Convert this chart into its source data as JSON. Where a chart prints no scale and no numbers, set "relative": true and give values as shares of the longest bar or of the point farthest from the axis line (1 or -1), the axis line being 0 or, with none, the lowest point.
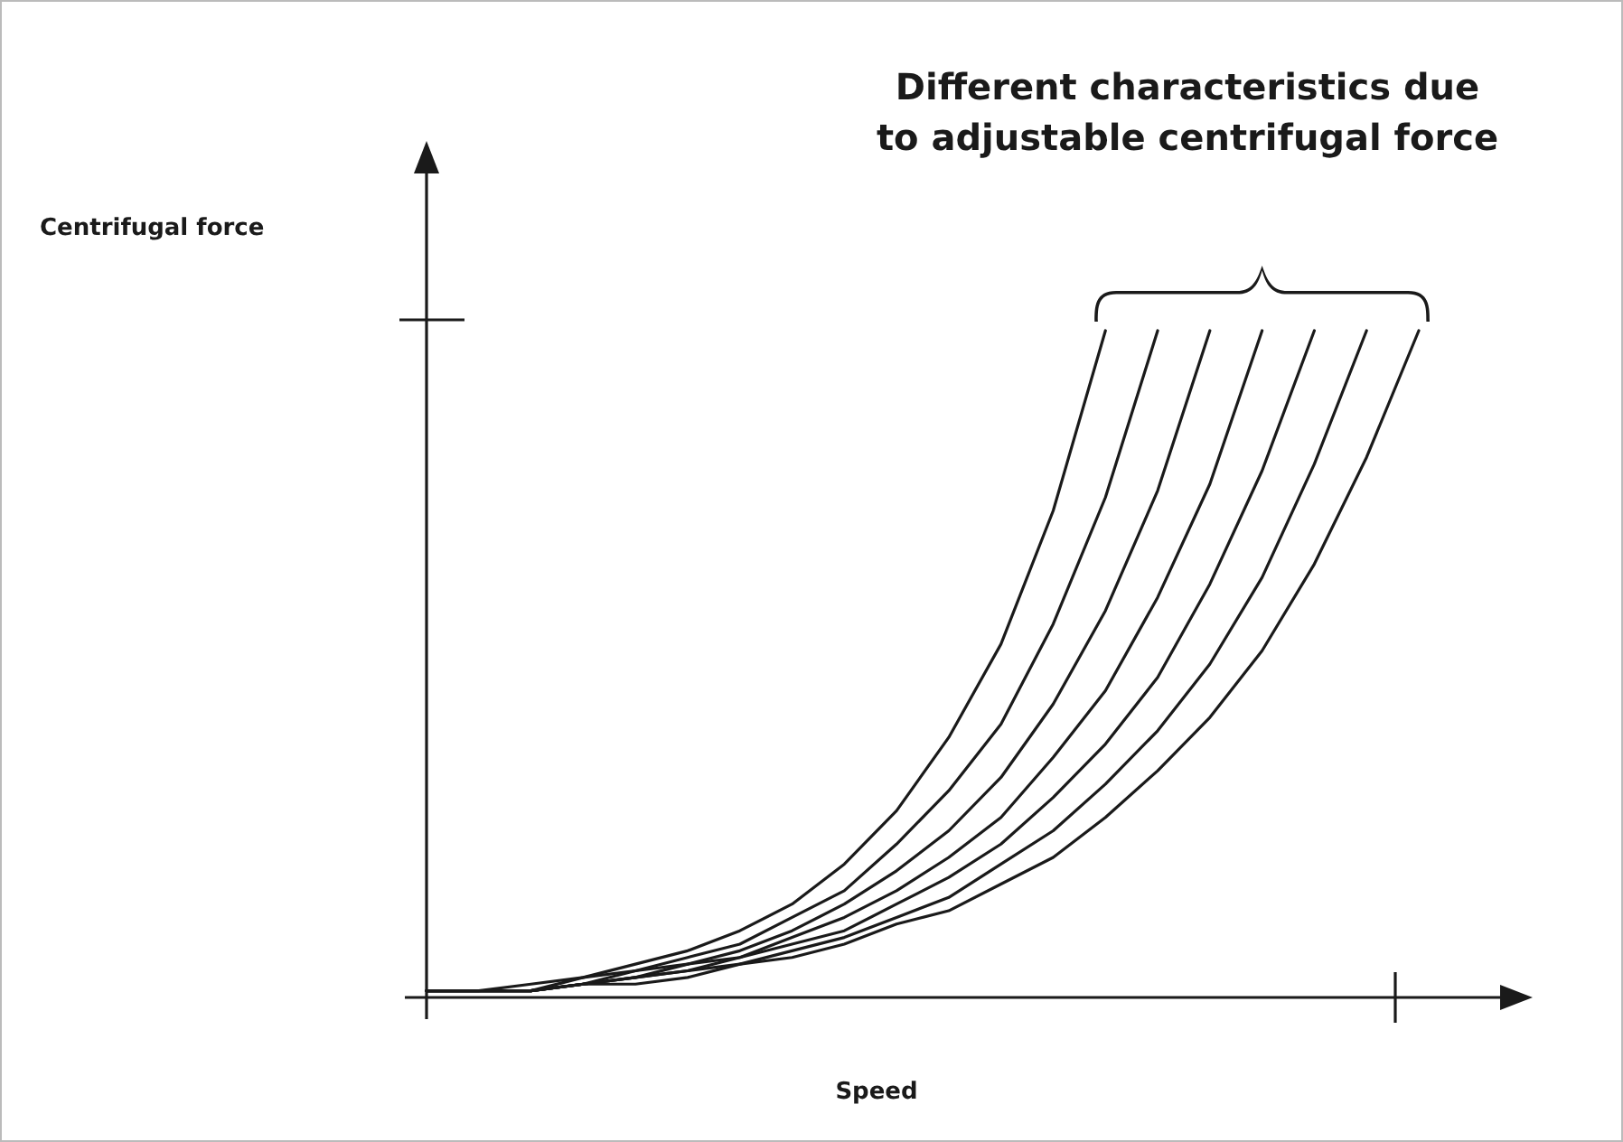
{
  "chart_data": {
    "type": "line",
    "title": "Different characteristics due\nto adjustable centrifugal force",
    "xlabel": "Speed",
    "annotations": [
      "Centrifugal force"
    ],
    "relative": true,
    "categories": [
      null,
      null,
      null,
      null,
      null,
      null,
      null,
      null,
      null,
      null,
      null,
      null,
      null,
      null,
      null,
      null,
      null,
      null,
      null,
      null
    ],
    "series": [
      {
        "color": "#1a1a1a",
        "values": [
          0.01,
          0.01,
          0.02,
          0.03,
          0.05,
          0.07,
          0.1,
          0.14,
          0.2,
          0.28,
          0.39,
          0.53,
          0.73,
          1,
          null,
          null,
          null,
          null,
          null,
          null
        ]
      },
      {
        "color": "#1a1a1a",
        "values": [
          0.01,
          0.01,
          0.01,
          0.03,
          0.04,
          0.06,
          0.08,
          0.12,
          0.16,
          0.23,
          0.31,
          0.41,
          0.56,
          0.75,
          1,
          null,
          null,
          null,
          null,
          null
        ]
      },
      {
        "color": "#1a1a1a",
        "values": [
          0.01,
          0.01,
          0.01,
          0.02,
          0.04,
          0.05,
          0.07,
          0.1,
          0.14,
          0.19,
          0.25,
          0.33,
          0.44,
          0.58,
          0.76,
          1,
          null,
          null,
          null,
          null
        ]
      },
      {
        "color": "#1a1a1a",
        "values": [
          0.01,
          0.01,
          0.01,
          0.02,
          0.03,
          0.05,
          0.06,
          0.09,
          0.12,
          0.16,
          0.21,
          0.27,
          0.36,
          0.46,
          0.6,
          0.77,
          1,
          null,
          null,
          null
        ]
      },
      {
        "color": "#1a1a1a",
        "values": [
          0.01,
          0.01,
          0.01,
          0.02,
          0.03,
          0.04,
          0.06,
          0.08,
          0.1,
          0.14,
          0.18,
          0.23,
          0.3,
          0.38,
          0.48,
          0.62,
          0.79,
          1,
          null,
          null
        ]
      },
      {
        "color": "#1a1a1a",
        "values": [
          0.01,
          0.01,
          0.01,
          0.02,
          0.03,
          0.04,
          0.05,
          0.07,
          0.09,
          0.12,
          0.15,
          0.2,
          0.25,
          0.32,
          0.4,
          0.5,
          0.63,
          0.8,
          1,
          null
        ]
      },
      {
        "color": "#1a1a1a",
        "values": [
          0.01,
          0.01,
          0.01,
          0.02,
          0.02,
          0.03,
          0.05,
          0.06,
          0.08,
          0.11,
          0.13,
          0.17,
          0.21,
          0.27,
          0.34,
          0.42,
          0.52,
          0.65,
          0.81,
          1
        ]
      }
    ]
  }
}
